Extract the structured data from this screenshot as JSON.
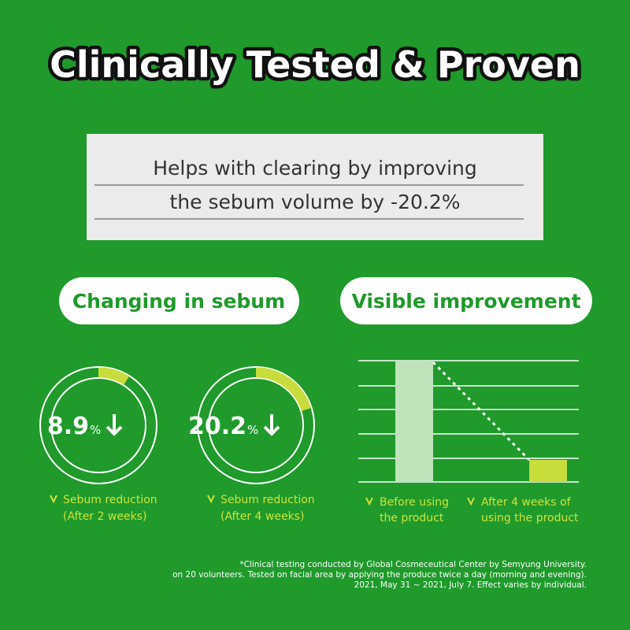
{
  "title": "Clinically Tested & Proven",
  "banner": {
    "lines": [
      "Helps with clearing by improving",
      "the sebum volume by -20.2%"
    ]
  },
  "sections": [
    {
      "heading": "Changing in sebum"
    },
    {
      "heading": "Visible improvement"
    }
  ],
  "donuts": [
    {
      "value": 8.9,
      "unit": "%",
      "caption": [
        "Sebum reduction",
        "(After 2 weeks)"
      ]
    },
    {
      "value": 20.2,
      "unit": "%",
      "caption": [
        "Sebum reduction",
        "(After 4 weeks)"
      ]
    }
  ],
  "comparison": {
    "captions": [
      [
        "Before using",
        "the product"
      ],
      [
        "After 4 weeks of",
        "using the product"
      ]
    ]
  },
  "footnote": [
    "*Clinical testing conducted by Global Cosmeceutical Center by Semyung University.",
    "on 20 volunteers. Tested on facial area by applying the produce twice a day (morning and evening).",
    "2021, May 31 ~ 2021, July 7. Effect varies by individual."
  ]
}
